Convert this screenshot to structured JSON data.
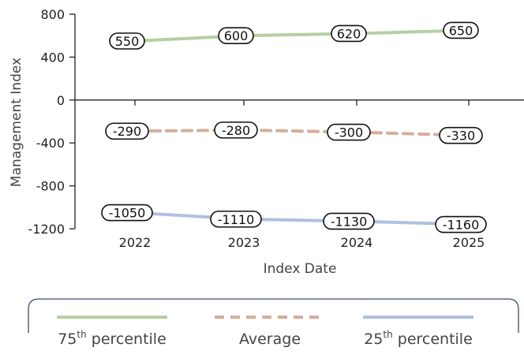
{
  "chart_data": {
    "type": "line",
    "xlabel": "Index Date",
    "ylabel": "Management Index",
    "categories": [
      "2022",
      "2023",
      "2024",
      "2025"
    ],
    "ylim": [
      -1200,
      800
    ],
    "yticks": [
      800,
      400,
      0,
      -400,
      -800,
      -1200
    ],
    "grid": false,
    "legend_position": "bottom",
    "series": [
      {
        "name": "75th percentile",
        "base": "75",
        "sup": "th",
        "rest": " percentile",
        "values": [
          550,
          600,
          620,
          650
        ],
        "color": "#b7cfa3",
        "dash": "solid"
      },
      {
        "name": "Average",
        "base": "Average",
        "sup": "",
        "rest": "",
        "values": [
          -290,
          -280,
          -300,
          -330
        ],
        "color": "#d5ad9c",
        "dash": "dashed"
      },
      {
        "name": "25th percentile",
        "base": "25",
        "sup": "th",
        "rest": " percentile",
        "values": [
          -1050,
          -1110,
          -1130,
          -1160
        ],
        "color": "#b1bfe0",
        "dash": "solid"
      }
    ]
  }
}
